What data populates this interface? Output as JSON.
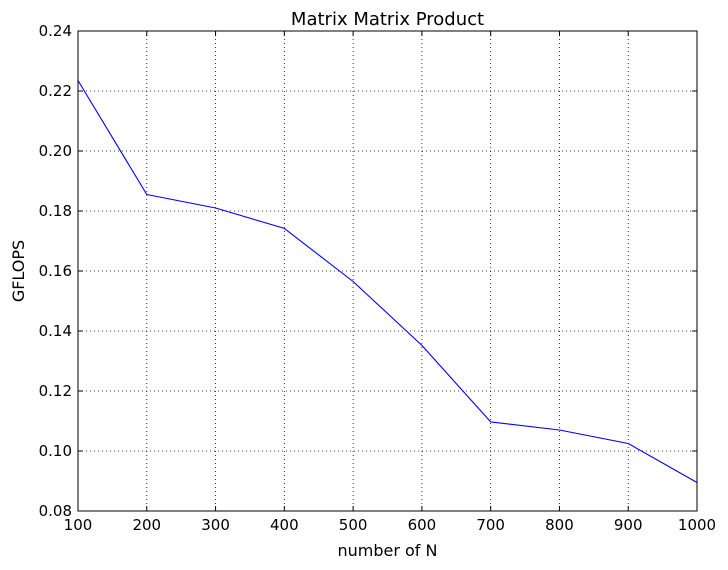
{
  "chart_data": {
    "type": "line",
    "title": "Matrix Matrix Product",
    "xlabel": "number of N",
    "ylabel": "GFLOPS",
    "xlim": [
      100,
      1000
    ],
    "ylim": [
      0.08,
      0.24
    ],
    "x_ticks": [
      "100",
      "200",
      "300",
      "400",
      "500",
      "600",
      "700",
      "800",
      "900",
      "1000"
    ],
    "y_ticks": [
      "0.08",
      "0.10",
      "0.12",
      "0.14",
      "0.16",
      "0.18",
      "0.20",
      "0.22",
      "0.24"
    ],
    "grid": true,
    "series": [
      {
        "color": "#0000ff",
        "x": [
          100,
          200,
          300,
          400,
          500,
          600,
          700,
          800,
          900,
          1000
        ],
        "values": [
          0.2235,
          0.1855,
          0.181,
          0.1742,
          0.1565,
          0.1352,
          0.1097,
          0.107,
          0.1025,
          0.0895
        ]
      }
    ]
  }
}
